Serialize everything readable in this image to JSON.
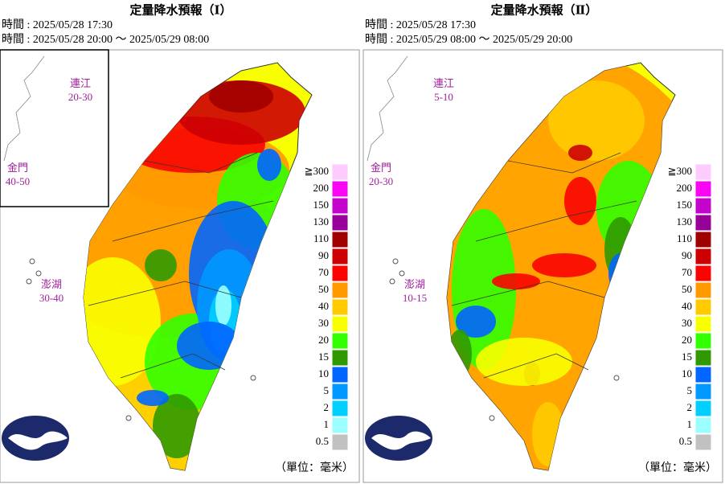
{
  "panels": [
    {
      "title": "定量降水預報（Ⅰ）",
      "issued": "時間 : 2025/05/28 17:30",
      "valid": "時間 : 2025/05/28 20:00 ～ 2025/05/29 08:00",
      "islands": [
        {
          "name": "連江",
          "range": "20-30"
        },
        {
          "name": "金門",
          "range": "40-50"
        },
        {
          "name": "澎湖",
          "range": "30-40"
        }
      ],
      "unit": "（單位：毫米）"
    },
    {
      "title": "定量降水預報（Ⅱ）",
      "issued": "時間 : 2025/05/28 17:30",
      "valid": "時間 : 2025/05/29 08:00 ～ 2025/05/29 20:00",
      "islands": [
        {
          "name": "連江",
          "range": "5-10"
        },
        {
          "name": "金門",
          "range": "20-30"
        },
        {
          "name": "澎湖",
          "range": "10-15"
        }
      ],
      "unit": "（單位：毫米）"
    }
  ],
  "legend": [
    {
      "label": "≧300",
      "color": "#fecbff"
    },
    {
      "label": "200",
      "color": "#f805f3"
    },
    {
      "label": "150",
      "color": "#c304cc"
    },
    {
      "label": "130",
      "color": "#98009a"
    },
    {
      "label": "110",
      "color": "#a00000"
    },
    {
      "label": "90",
      "color": "#cc0003"
    },
    {
      "label": "70",
      "color": "#fa0300"
    },
    {
      "label": "50",
      "color": "#ff9a00"
    },
    {
      "label": "40",
      "color": "#ffcb00"
    },
    {
      "label": "30",
      "color": "#f8ff00"
    },
    {
      "label": "20",
      "color": "#32ff00"
    },
    {
      "label": "15",
      "color": "#309901"
    },
    {
      "label": "10",
      "color": "#0165ff"
    },
    {
      "label": "5",
      "color": "#0198ff"
    },
    {
      "label": "2",
      "color": "#00cfff"
    },
    {
      "label": "1",
      "color": "#9bffff"
    },
    {
      "label": "0.5",
      "color": "#c1c1c1"
    }
  ]
}
